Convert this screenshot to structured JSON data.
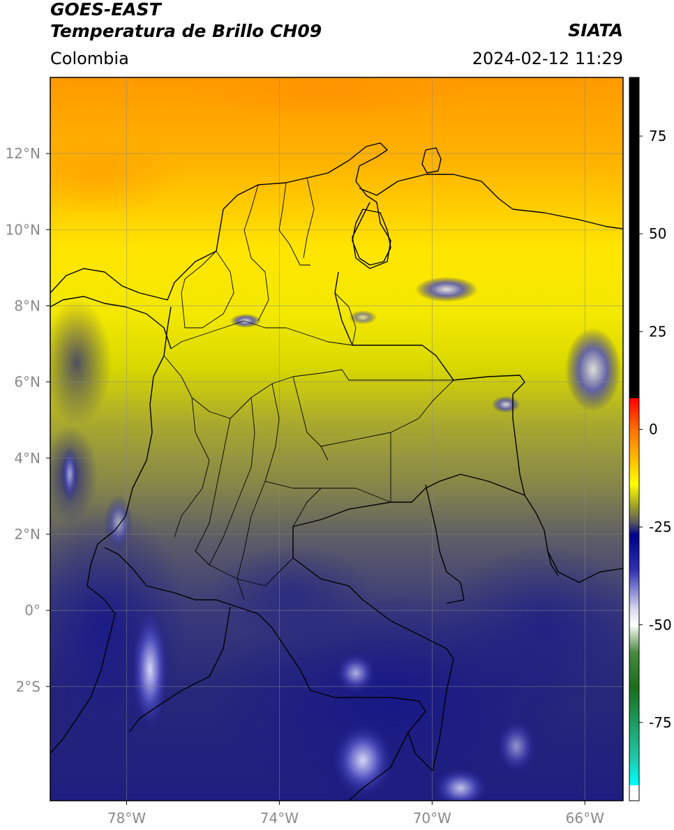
{
  "header": {
    "satellite": "GOES-EAST",
    "product": "Temperatura de Brillo CH09",
    "region": "Colombia",
    "organization": "SIATA",
    "datetime": "2024-02-12 11:29"
  },
  "map": {
    "lon_range": [
      -80,
      -65
    ],
    "lat_range": [
      -5,
      14
    ],
    "lon_ticks": [
      {
        "value": -78,
        "label": "78°W"
      },
      {
        "value": -74,
        "label": "74°W"
      },
      {
        "value": -70,
        "label": "70°W"
      },
      {
        "value": -66,
        "label": "66°W"
      }
    ],
    "lat_ticks": [
      {
        "value": 12,
        "label": "12°N"
      },
      {
        "value": 10,
        "label": "10°N"
      },
      {
        "value": 8,
        "label": "8°N"
      },
      {
        "value": 6,
        "label": "6°N"
      },
      {
        "value": 4,
        "label": "4°N"
      },
      {
        "value": 2,
        "label": "2°N"
      },
      {
        "value": 0,
        "label": "0°"
      },
      {
        "value": -2,
        "label": "2°S"
      }
    ],
    "grid": true
  },
  "colorbar": {
    "range": [
      -95,
      90
    ],
    "ticks": [
      {
        "value": 75,
        "label": "75"
      },
      {
        "value": 50,
        "label": "50"
      },
      {
        "value": 25,
        "label": "25"
      },
      {
        "value": 0,
        "label": "0"
      },
      {
        "value": -25,
        "label": "-25"
      },
      {
        "value": -50,
        "label": "-50"
      },
      {
        "value": -75,
        "label": "-75"
      }
    ],
    "stops": [
      {
        "value": 90,
        "color": "#000000"
      },
      {
        "value": 8,
        "color": "#000000"
      },
      {
        "value": 7.9,
        "color": "#ff0000"
      },
      {
        "value": 0,
        "color": "#ff7000"
      },
      {
        "value": -8,
        "color": "#ffc000"
      },
      {
        "value": -14,
        "color": "#ffff00"
      },
      {
        "value": -20,
        "color": "#9a9a2a"
      },
      {
        "value": -24,
        "color": "#555562"
      },
      {
        "value": -27,
        "color": "#000088"
      },
      {
        "value": -36,
        "color": "#3030b0"
      },
      {
        "value": -46,
        "color": "#d8d8f0"
      },
      {
        "value": -50,
        "color": "#ffffff"
      },
      {
        "value": -57,
        "color": "#4a8a40"
      },
      {
        "value": -66,
        "color": "#1a6e1a"
      },
      {
        "value": -84,
        "color": "#20c8a8"
      },
      {
        "value": -91,
        "color": "#00ffff"
      },
      {
        "value": -91.1,
        "color": "#ffffff"
      },
      {
        "value": -95,
        "color": "#ffffff"
      }
    ]
  },
  "colors": {
    "gridline": "#888888",
    "border": "#000000"
  }
}
